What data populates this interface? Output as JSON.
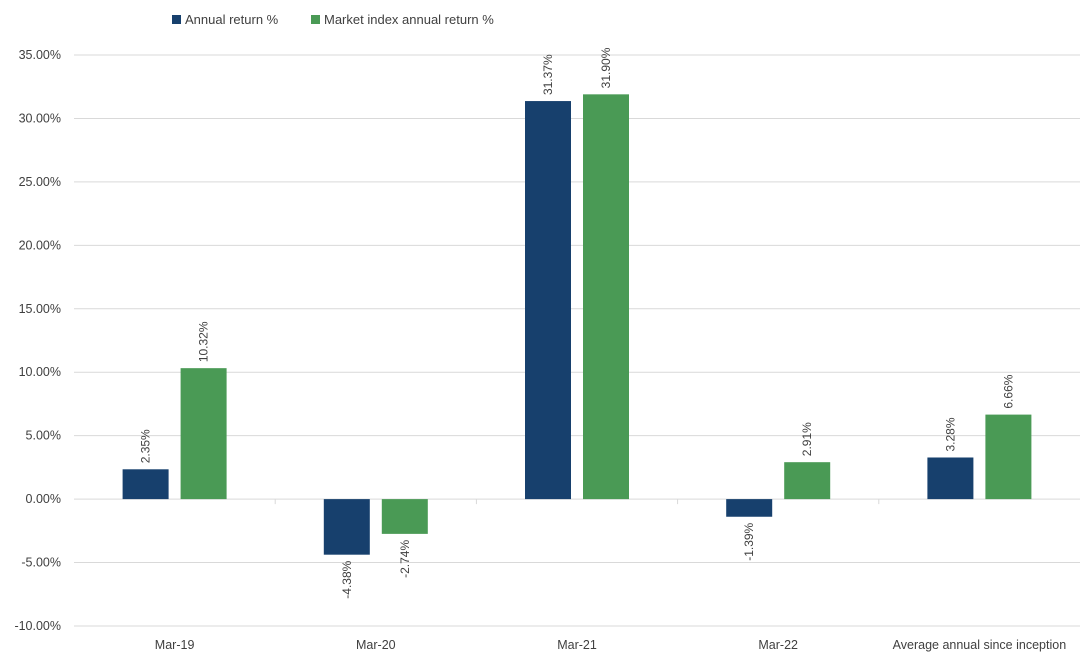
{
  "chart_data": {
    "type": "bar",
    "categories": [
      "Mar-19",
      "Mar-20",
      "Mar-21",
      "Mar-22",
      "Average annual since inception"
    ],
    "series": [
      {
        "name": "Annual return %",
        "color": "#17406d",
        "values": [
          2.35,
          -4.38,
          31.37,
          -1.39,
          3.28
        ],
        "labels": [
          "2.35%",
          "-4.38%",
          "31.37%",
          "-1.39%",
          "3.28%"
        ]
      },
      {
        "name": "Market index annual return %",
        "color": "#4a9a55",
        "values": [
          10.32,
          -2.74,
          31.9,
          2.91,
          6.66
        ],
        "labels": [
          "10.32%",
          "-2.74%",
          "31.90%",
          "2.91%",
          "6.66%"
        ]
      }
    ],
    "y_ticks": [
      35,
      30,
      25,
      20,
      15,
      10,
      5,
      0,
      -5,
      -10
    ],
    "y_tick_labels": [
      "35.00%",
      "30.00%",
      "25.00%",
      "20.00%",
      "15.00%",
      "10.00%",
      "5.00%",
      "0.00%",
      "-5.00%",
      "-10.00%"
    ],
    "ylim": [
      -10,
      35
    ],
    "grid": true,
    "legend_position": "top-center",
    "data_labels_rotated": true
  }
}
